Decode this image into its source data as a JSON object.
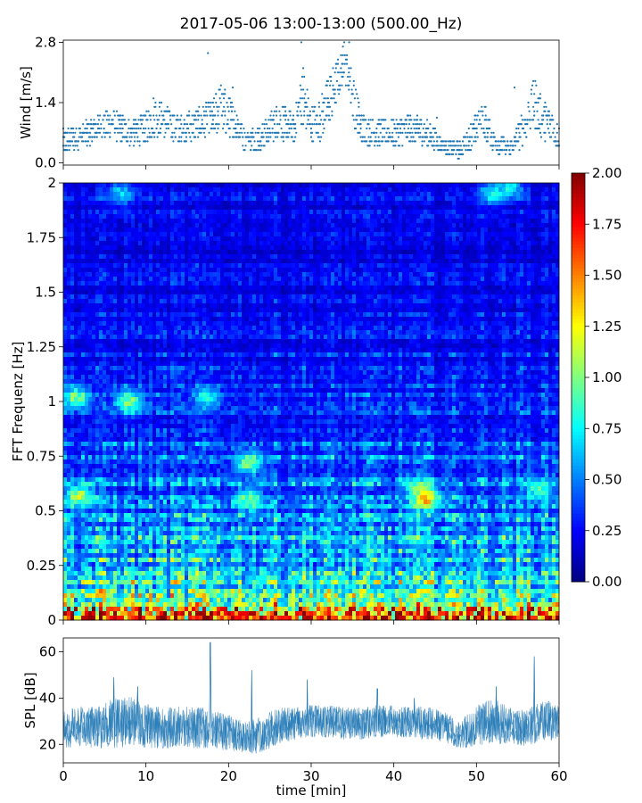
{
  "figure": {
    "title": "2017-05-06 13:00-13:00 (500.00_Hz)"
  },
  "chart_data": [
    {
      "type": "scatter",
      "panel": "wind",
      "ylabel": "Wind [m/s]",
      "xlim": [
        0,
        60
      ],
      "ylim": [
        -0.05,
        2.85
      ],
      "yticks": [
        "0.0",
        "1.4",
        "2.8"
      ],
      "ytick_values": [
        0.0,
        1.4,
        2.8
      ],
      "grid": false,
      "series": [
        {
          "color": "#1f77b4",
          "x": [
            0,
            2,
            4,
            6,
            8,
            10,
            11,
            12,
            14,
            16,
            18,
            19,
            20,
            21,
            22,
            24,
            26,
            28,
            29,
            30,
            31,
            32,
            33,
            34,
            35,
            36,
            38,
            40,
            42,
            44,
            46,
            48,
            50,
            51,
            52,
            54,
            56,
            57,
            58,
            59,
            60
          ],
          "y": [
            0.5,
            0.6,
            0.8,
            0.9,
            0.7,
            0.8,
            1.1,
            1.0,
            0.8,
            0.9,
            1.0,
            1.3,
            1.1,
            0.9,
            0.5,
            0.6,
            1.0,
            0.8,
            1.6,
            0.9,
            1.0,
            1.4,
            1.8,
            2.4,
            1.6,
            0.8,
            0.7,
            0.7,
            0.8,
            0.7,
            0.4,
            0.3,
            0.8,
            1.0,
            0.5,
            0.3,
            0.9,
            1.4,
            1.0,
            0.9,
            0.6
          ],
          "spread": [
            0.5,
            0.5,
            0.5,
            0.55,
            0.5,
            0.6,
            0.8,
            0.6,
            0.6,
            0.6,
            0.7,
            1.0,
            0.8,
            0.6,
            0.4,
            0.5,
            0.7,
            0.6,
            1.2,
            0.7,
            0.8,
            1.0,
            1.0,
            0.6,
            1.0,
            0.6,
            0.5,
            0.5,
            0.6,
            0.5,
            0.3,
            0.3,
            0.6,
            0.7,
            0.4,
            0.3,
            0.7,
            1.0,
            0.7,
            0.7,
            0.5
          ],
          "max_points": [
            [
              17.5,
              2.55
            ],
            [
              20.5,
              1.75
            ],
            [
              28.8,
              2.8
            ],
            [
              34.0,
              2.8
            ],
            [
              34.6,
              2.8
            ],
            [
              45.2,
              1.05
            ],
            [
              54.6,
              1.75
            ]
          ]
        }
      ]
    },
    {
      "type": "heatmap",
      "panel": "spectrogram",
      "ylabel": "FFT Frequenz [Hz]",
      "xlim": [
        0,
        60
      ],
      "ylim": [
        0,
        2
      ],
      "yticks": [
        "0",
        "0.25",
        "0.5",
        "0.75",
        "1",
        "1.25",
        "1.5",
        "1.75",
        "2"
      ],
      "ytick_values": [
        0,
        0.25,
        0.5,
        0.75,
        1,
        1.25,
        1.5,
        1.75,
        2
      ],
      "colormap": "jet",
      "colorbar": {
        "range": [
          0.0,
          2.0
        ],
        "ticks": [
          "0.00",
          "0.25",
          "0.50",
          "0.75",
          "1.00",
          "1.25",
          "1.50",
          "1.75",
          "2.00"
        ],
        "tick_values": [
          0,
          0.25,
          0.5,
          0.75,
          1.0,
          1.25,
          1.5,
          1.75,
          2.0
        ]
      },
      "frequency_profile": {
        "frequency_hz": [
          0.0,
          0.05,
          0.1,
          0.2,
          0.3,
          0.5,
          0.75,
          1.0,
          1.25,
          1.5,
          1.75,
          2.0
        ],
        "typical_value": [
          1.4,
          1.05,
          0.85,
          0.7,
          0.6,
          0.5,
          0.4,
          0.32,
          0.27,
          0.22,
          0.22,
          0.22
        ]
      },
      "hotspots": [
        {
          "x": 1.5,
          "f": 1.02,
          "value": 1.0
        },
        {
          "x": 8.0,
          "f": 1.0,
          "value": 1.05
        },
        {
          "x": 17.5,
          "f": 1.02,
          "value": 0.8
        },
        {
          "x": 22.5,
          "f": 0.72,
          "value": 1.0
        },
        {
          "x": 22.5,
          "f": 0.55,
          "value": 1.0
        },
        {
          "x": 2.0,
          "f": 0.57,
          "value": 1.1
        },
        {
          "x": 43.0,
          "f": 0.6,
          "value": 1.0
        },
        {
          "x": 44.0,
          "f": 0.55,
          "value": 1.3
        },
        {
          "x": 57.5,
          "f": 0.6,
          "value": 0.9
        },
        {
          "x": 52.0,
          "f": 1.95,
          "value": 0.8
        },
        {
          "x": 54.0,
          "f": 1.98,
          "value": 0.75
        },
        {
          "x": 7.0,
          "f": 1.95,
          "value": 0.7
        }
      ]
    },
    {
      "type": "line",
      "panel": "spl",
      "ylabel": "SPL [dB]",
      "xlabel": "time [min]",
      "xlim": [
        0,
        60
      ],
      "ylim": [
        12,
        66
      ],
      "xticks": [
        "0",
        "10",
        "20",
        "30",
        "40",
        "50",
        "60"
      ],
      "xtick_values": [
        0,
        10,
        20,
        30,
        40,
        50,
        60
      ],
      "yticks": [
        "20",
        "40",
        "60"
      ],
      "ytick_values": [
        20,
        40,
        60
      ],
      "series": [
        {
          "color": "#1f77b4",
          "x": [
            0,
            2,
            4,
            6,
            8,
            10,
            12,
            14,
            16,
            18,
            20,
            21,
            22,
            24,
            26,
            28,
            30,
            32,
            34,
            36,
            38,
            40,
            42,
            44,
            46,
            48,
            50,
            52,
            54,
            56,
            58,
            60
          ],
          "y": [
            26,
            28,
            27,
            29,
            30,
            28,
            27,
            28,
            27,
            27,
            25,
            24,
            23,
            24,
            28,
            29,
            30,
            30,
            29,
            29,
            30,
            30,
            30,
            29,
            28,
            24,
            28,
            30,
            28,
            27,
            30,
            30
          ],
          "spread": [
            8,
            9,
            9,
            11,
            11,
            10,
            9,
            9,
            9,
            9,
            8,
            7,
            7,
            8,
            8,
            7,
            7,
            7,
            7,
            7,
            7,
            7,
            7,
            7,
            7,
            6,
            9,
            10,
            8,
            8,
            9,
            8
          ],
          "spikes": [
            [
              6.1,
              49
            ],
            [
              9.0,
              45
            ],
            [
              17.8,
              64
            ],
            [
              22.8,
              52
            ],
            [
              29.5,
              48
            ],
            [
              38.0,
              44
            ],
            [
              42.5,
              40
            ],
            [
              52.4,
              45
            ],
            [
              57.0,
              58
            ]
          ]
        }
      ]
    }
  ]
}
